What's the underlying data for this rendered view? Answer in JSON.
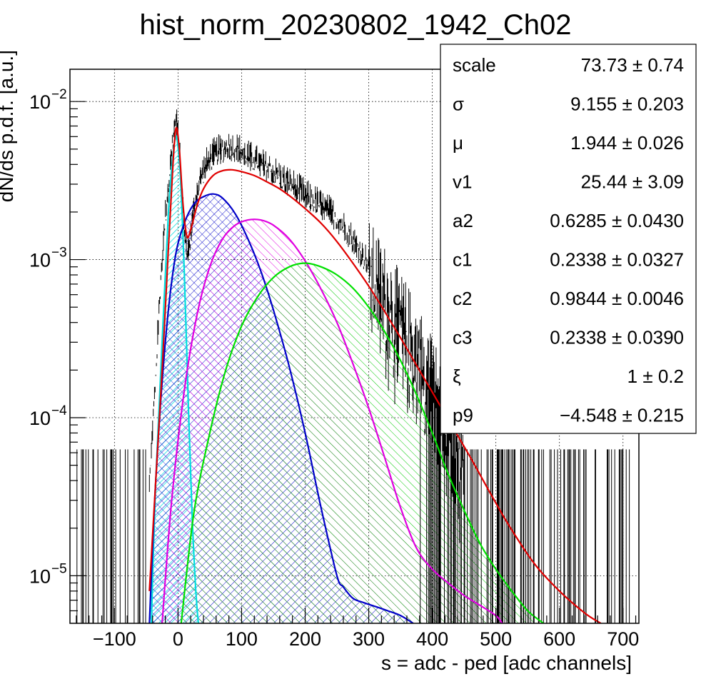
{
  "chart_data": {
    "type": "line",
    "title": "hist_norm_20230802_1942_Ch02",
    "xlabel": "s = adc - ped [adc channels]",
    "ylabel": "dN/ds p.d.f. [a.u.]",
    "xlim": [
      -170,
      725
    ],
    "ylim": [
      5e-06,
      0.016
    ],
    "yscale": "log",
    "grid": true,
    "x_ticks": [
      -100,
      0,
      100,
      200,
      300,
      400,
      500,
      600,
      700
    ],
    "x_tick_labels": [
      "−100",
      "0",
      "100",
      "200",
      "300",
      "400",
      "500",
      "600",
      "700"
    ],
    "y_ticks": [
      {
        "value": 0.01,
        "base": "10",
        "exp": "−2"
      },
      {
        "value": 0.001,
        "base": "10",
        "exp": "−3"
      },
      {
        "value": 0.0001,
        "base": "10",
        "exp": "−4"
      },
      {
        "value": 1e-05,
        "base": "10",
        "exp": "−5"
      }
    ],
    "series": [
      {
        "color": "#e00000",
        "x": [
          -45,
          -35,
          -25,
          -15,
          -8,
          -3,
          2,
          8,
          14,
          20,
          30,
          40,
          55,
          70,
          85,
          100,
          120,
          140,
          160,
          180,
          200,
          225,
          250,
          275,
          300,
          325,
          350,
          375,
          400,
          430,
          460,
          490,
          520,
          560,
          600,
          640,
          665
        ],
        "y": [
          8e-06,
          4e-05,
          0.0002,
          0.0012,
          0.004,
          0.0068,
          0.005,
          0.0022,
          0.0014,
          0.00155,
          0.0022,
          0.0028,
          0.0034,
          0.00365,
          0.0037,
          0.0036,
          0.0034,
          0.0031,
          0.0028,
          0.00245,
          0.0021,
          0.0017,
          0.0013,
          0.00095,
          0.00068,
          0.00047,
          0.00032,
          0.000215,
          0.000145,
          9e-05,
          5.6e-05,
          3.4e-05,
          2.1e-05,
          1.2e-05,
          8e-06,
          5.8e-06,
          5e-06
        ]
      },
      {
        "color": "#00dede",
        "x": [
          -42,
          -35,
          -25,
          -15,
          -8,
          -4,
          -1,
          4,
          10,
          16,
          22,
          28,
          32
        ],
        "y": [
          5e-06,
          4e-05,
          0.0003,
          0.002,
          0.0046,
          0.0059,
          0.0056,
          0.0032,
          0.0008,
          0.00013,
          2.5e-05,
          8e-06,
          5e-06
        ]
      },
      {
        "color": "#0000c8",
        "x": [
          -45,
          -35,
          -20,
          -5,
          10,
          25,
          40,
          55,
          70,
          90,
          110,
          130,
          150,
          175,
          200,
          225,
          250,
          260,
          275,
          290,
          310,
          330,
          350,
          370
        ],
        "y": [
          5e-06,
          4e-05,
          0.0003,
          0.001,
          0.0017,
          0.00225,
          0.0025,
          0.0026,
          0.00245,
          0.00195,
          0.00135,
          0.00085,
          0.00048,
          0.00021,
          8e-05,
          2.7e-05,
          1e-05,
          8.5e-06,
          7.2e-06,
          6.8e-06,
          6.4e-06,
          6e-06,
          5.6e-06,
          5e-06
        ]
      },
      {
        "color": "#e000e0",
        "x": [
          -25,
          -10,
          10,
          30,
          50,
          70,
          90,
          110,
          130,
          150,
          175,
          200,
          225,
          250,
          275,
          300,
          325,
          350,
          375,
          400,
          425,
          450,
          475,
          500,
          510
        ],
        "y": [
          5e-06,
          3e-05,
          0.00015,
          0.00045,
          0.0009,
          0.00135,
          0.00165,
          0.00178,
          0.00178,
          0.00165,
          0.00135,
          0.00098,
          0.00065,
          0.0004,
          0.00022,
          0.000115,
          5.6e-05,
          2.7e-05,
          1.5e-05,
          1.1e-05,
          9e-06,
          7.5e-06,
          6.5e-06,
          5.6e-06,
          5e-06
        ]
      },
      {
        "color": "#00e000",
        "x": [
          5,
          25,
          50,
          75,
          100,
          125,
          150,
          175,
          200,
          225,
          250,
          275,
          300,
          325,
          350,
          375,
          400,
          425,
          450,
          475,
          500,
          525,
          550,
          575
        ],
        "y": [
          5e-06,
          2.5e-05,
          8e-05,
          0.0002,
          0.00038,
          0.00058,
          0.00077,
          0.0009,
          0.00095,
          0.0009,
          0.0008,
          0.00066,
          0.0005,
          0.00035,
          0.00023,
          0.00014,
          8e-05,
          4.4e-05,
          2.6e-05,
          1.6e-05,
          1.1e-05,
          8e-06,
          6e-06,
          5e-06
        ]
      }
    ],
    "histogram_envelope": {
      "color": "#000000",
      "x": [
        -160,
        -140,
        -120,
        -100,
        -80,
        -60,
        -50,
        -42,
        -35,
        -28,
        -20,
        -14,
        -8,
        -5,
        -3,
        0,
        4,
        8,
        12,
        16,
        20,
        25,
        30,
        40,
        50,
        60,
        70,
        80,
        90,
        100,
        110,
        120,
        130,
        140,
        150,
        160,
        170,
        180,
        190,
        200,
        210,
        220,
        230,
        240,
        250,
        260,
        270,
        280,
        290,
        300,
        320,
        340,
        360,
        380,
        400,
        420,
        440,
        460,
        480,
        500,
        520,
        540,
        560,
        580,
        600,
        620,
        640,
        660,
        680,
        700,
        720
      ],
      "y": [
        5e-06,
        5e-06,
        5e-06,
        5e-06,
        5e-06,
        5e-06,
        2e-05,
        6.5e-05,
        0.0002,
        0.0007,
        0.002,
        0.0035,
        0.006,
        0.0075,
        0.008,
        0.0065,
        0.004,
        0.0022,
        0.0013,
        0.00125,
        0.0015,
        0.0022,
        0.0029,
        0.0039,
        0.0046,
        0.005,
        0.0052,
        0.0054,
        0.0053,
        0.0051,
        0.0047,
        0.0045,
        0.0042,
        0.004,
        0.0038,
        0.0035,
        0.0033,
        0.0031,
        0.0029,
        0.0027,
        0.0025,
        0.0024,
        0.0022,
        0.0021,
        0.0019,
        0.0017,
        0.0015,
        0.0013,
        0.0011,
        0.001,
        0.00075,
        0.00055,
        0.0004,
        0.00028,
        0.00019,
        0.00012,
        7e-05,
        6.3e-05,
        6.3e-05,
        6.3e-05,
        6.3e-05,
        6.3e-05,
        6.3e-05,
        6.3e-05,
        6.3e-05,
        6.3e-05,
        6.3e-05,
        6.3e-05,
        6.3e-05,
        6.3e-05,
        6.3e-05
      ]
    },
    "stats_box": {
      "position": "top-right",
      "rows": [
        {
          "name": "scale",
          "value": "73.73",
          "error": "0.74"
        },
        {
          "name": "σ",
          "value": "9.155",
          "error": "0.203"
        },
        {
          "name": "μ",
          "value": "1.944",
          "error": "0.026"
        },
        {
          "name": "v1",
          "value": "25.44",
          "error": "3.09"
        },
        {
          "name": "a2",
          "value": "0.6285",
          "error": "0.0430"
        },
        {
          "name": "c1",
          "value": "0.2338",
          "error": "0.0327"
        },
        {
          "name": "c2",
          "value": "0.9844",
          "error": "0.0046"
        },
        {
          "name": "c3",
          "value": "0.2338",
          "error": "0.0390"
        },
        {
          "name": "ξ",
          "value": "1",
          "error": "0.2"
        },
        {
          "name": "p9",
          "value": "−4.548",
          "error": "0.215"
        }
      ]
    }
  }
}
